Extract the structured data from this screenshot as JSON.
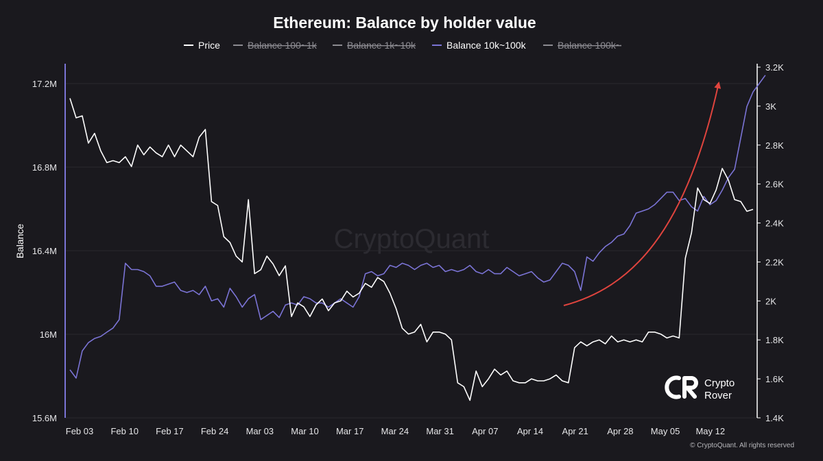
{
  "chart_data": {
    "type": "line",
    "title": "Ethereum: Balance by holder value",
    "ylabel": "Balance",
    "ylim_left": [
      15600000,
      17300000
    ],
    "ylim_right": [
      1400,
      3200
    ],
    "left_ticks": [
      {
        "value": 15600000,
        "label": "15.6M"
      },
      {
        "value": 16000000,
        "label": "16M"
      },
      {
        "value": 16400000,
        "label": "16.4M"
      },
      {
        "value": 16800000,
        "label": "16.8M"
      },
      {
        "value": 17200000,
        "label": "17.2M"
      }
    ],
    "right_ticks": [
      {
        "value": 1400,
        "label": "1.4K"
      },
      {
        "value": 1600,
        "label": "1.6K"
      },
      {
        "value": 1800,
        "label": "1.8K"
      },
      {
        "value": 2000,
        "label": "2K"
      },
      {
        "value": 2200,
        "label": "2.2K"
      },
      {
        "value": 2400,
        "label": "2.4K"
      },
      {
        "value": 2600,
        "label": "2.6K"
      },
      {
        "value": 2800,
        "label": "2.8K"
      },
      {
        "value": 3000,
        "label": "3K"
      },
      {
        "value": 3200,
        "label": "3.2K"
      }
    ],
    "x_ticks": [
      "Feb 03",
      "Feb 10",
      "Feb 17",
      "Feb 24",
      "Mar 03",
      "Mar 10",
      "Mar 17",
      "Mar 24",
      "Mar 31",
      "Apr 07",
      "Apr 14",
      "Apr 21",
      "Apr 28",
      "May 05",
      "May 12"
    ],
    "x_start": "2025-02-03",
    "legend_position": "top-center",
    "legend": [
      {
        "name": "Price",
        "color": "#ffffff",
        "enabled": true
      },
      {
        "name": "Balance 100~1k",
        "color": "#8d8c92",
        "enabled": false
      },
      {
        "name": "Balance 1k~10k",
        "color": "#8d8c92",
        "enabled": false
      },
      {
        "name": "Balance 10k~100k",
        "color": "#7b74d6",
        "enabled": true
      },
      {
        "name": "Balance 100k~",
        "color": "#8d8c92",
        "enabled": false
      }
    ],
    "grid": true,
    "series": [
      {
        "name": "Price",
        "axis": "right",
        "color": "#ffffff",
        "values": [
          3040,
          2940,
          2950,
          2810,
          2860,
          2770,
          2710,
          2720,
          2710,
          2740,
          2690,
          2800,
          2750,
          2790,
          2760,
          2740,
          2800,
          2740,
          2800,
          2770,
          2740,
          2840,
          2880,
          2510,
          2490,
          2330,
          2300,
          2230,
          2200,
          2520,
          2140,
          2160,
          2230,
          2190,
          2130,
          2180,
          1920,
          1990,
          1970,
          1920,
          1980,
          2010,
          1950,
          1990,
          2000,
          2050,
          2020,
          2040,
          2090,
          2070,
          2120,
          2100,
          2040,
          1960,
          1860,
          1830,
          1840,
          1880,
          1790,
          1840,
          1840,
          1830,
          1800,
          1580,
          1560,
          1490,
          1640,
          1560,
          1600,
          1650,
          1620,
          1640,
          1590,
          1580,
          1580,
          1600,
          1590,
          1590,
          1600,
          1620,
          1590,
          1580,
          1760,
          1790,
          1770,
          1790,
          1800,
          1780,
          1820,
          1790,
          1800,
          1790,
          1800,
          1790,
          1840,
          1840,
          1830,
          1810,
          1820,
          1810,
          2220,
          2350,
          2580,
          2520,
          2500,
          2570,
          2680,
          2620,
          2520,
          2510,
          2460,
          2470
        ]
      },
      {
        "name": "Balance 10k~100k",
        "axis": "left",
        "color": "#7b74d6",
        "values": [
          15830000,
          15790000,
          15920000,
          15960000,
          15980000,
          15990000,
          16010000,
          16030000,
          16070000,
          16340000,
          16310000,
          16310000,
          16300000,
          16280000,
          16230000,
          16230000,
          16240000,
          16250000,
          16210000,
          16200000,
          16210000,
          16190000,
          16230000,
          16160000,
          16170000,
          16130000,
          16220000,
          16180000,
          16130000,
          16170000,
          16190000,
          16070000,
          16090000,
          16110000,
          16080000,
          16140000,
          16150000,
          16140000,
          16180000,
          16170000,
          16150000,
          16150000,
          16130000,
          16150000,
          16170000,
          16150000,
          16130000,
          16180000,
          16290000,
          16300000,
          16280000,
          16290000,
          16330000,
          16320000,
          16340000,
          16330000,
          16310000,
          16330000,
          16340000,
          16320000,
          16330000,
          16300000,
          16310000,
          16300000,
          16310000,
          16330000,
          16300000,
          16290000,
          16310000,
          16290000,
          16290000,
          16320000,
          16300000,
          16280000,
          16290000,
          16300000,
          16270000,
          16250000,
          16260000,
          16300000,
          16340000,
          16330000,
          16300000,
          16210000,
          16370000,
          16350000,
          16390000,
          16420000,
          16440000,
          16470000,
          16480000,
          16520000,
          16580000,
          16590000,
          16600000,
          16620000,
          16650000,
          16680000,
          16680000,
          16640000,
          16650000,
          16610000,
          16590000,
          16660000,
          16620000,
          16640000,
          16690000,
          16750000,
          16790000,
          16940000,
          17090000,
          17160000,
          17200000,
          17240000
        ]
      }
    ],
    "annotations": [
      {
        "type": "arrow",
        "color": "#e0443e"
      }
    ]
  },
  "watermark": "CryptoQuant",
  "logo": {
    "line1": "Crypto",
    "line2": "Rover"
  },
  "copyright": "© CryptoQuant. All rights reserved"
}
